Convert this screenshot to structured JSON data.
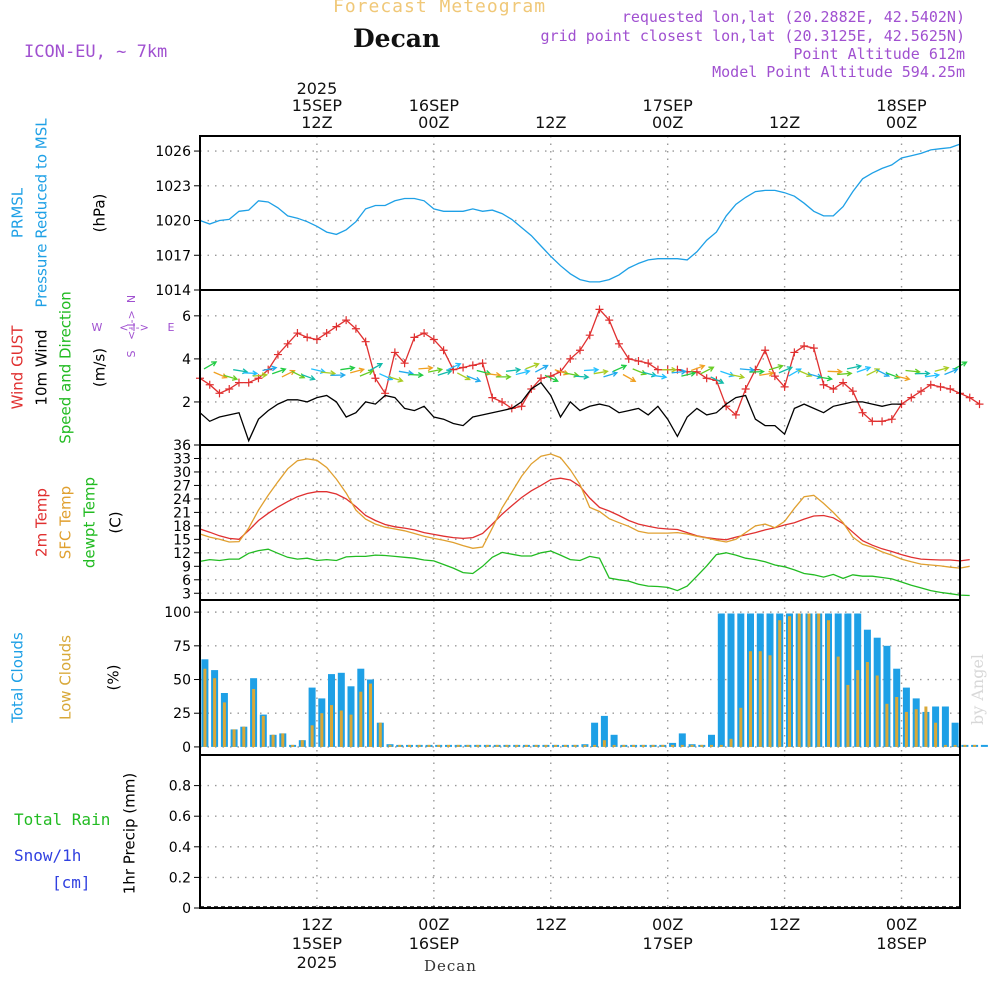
{
  "header": {
    "subtitle": "Forecast Meteogram",
    "title": "Decan",
    "model": "ICON-EU, ~ 7km",
    "requested": "requested lon,lat (20.2882E, 42.5402N)",
    "gridpoint": "grid point closest lon,lat (20.3125E, 42.5625N)",
    "point_alt": "Point Altitude 612m",
    "model_alt": "Model Point Altitude 594.25m",
    "bottom_label": "Decan",
    "credit": "by Angel",
    "colors": {
      "subtitle": "#f0c878",
      "purple": "#a050d0",
      "credit": "#d8d8d8"
    }
  },
  "chart_data": {
    "type": "meteogram",
    "time_axis": {
      "start": "2025-09-15 00Z",
      "step_hours": 1,
      "hours": 78,
      "top_labels": [
        {
          "h": 12,
          "lines": [
            "2025",
            "15SEP",
            "12Z"
          ]
        },
        {
          "h": 24,
          "lines": [
            "16SEP",
            "00Z"
          ]
        },
        {
          "h": 36,
          "lines": [
            "12Z"
          ]
        },
        {
          "h": 48,
          "lines": [
            "17SEP",
            "00Z"
          ]
        },
        {
          "h": 60,
          "lines": [
            "12Z"
          ]
        },
        {
          "h": 72,
          "lines": [
            "18SEP",
            "00Z"
          ]
        }
      ],
      "bottom_labels": [
        {
          "h": 12,
          "lines": [
            "12Z",
            "15SEP",
            "2025"
          ]
        },
        {
          "h": 24,
          "lines": [
            "00Z",
            "16SEP"
          ]
        },
        {
          "h": 36,
          "lines": [
            "12Z"
          ]
        },
        {
          "h": 48,
          "lines": [
            "00Z",
            "17SEP"
          ]
        },
        {
          "h": 60,
          "lines": [
            "12Z"
          ]
        },
        {
          "h": 72,
          "lines": [
            "00Z",
            "18SEP"
          ]
        }
      ]
    },
    "panels": [
      {
        "id": "pressure",
        "ylabel_lines": [
          {
            "text": "PRMSL",
            "color": "#1ea0e6"
          },
          {
            "text": "Pressure Reduced to MSL",
            "color": "#1ea0e6"
          }
        ],
        "unit": "(hPa)",
        "ylim": [
          1014,
          1027.3
        ],
        "yticks": [
          1014,
          1017,
          1020,
          1023,
          1026
        ],
        "series": [
          {
            "name": "PRMSL",
            "color": "#1ea0e6",
            "type": "line",
            "values": [
              1020,
              1019.7,
              1020,
              1020.1,
              1020.8,
              1020.9,
              1021.7,
              1021.6,
              1021.1,
              1020.4,
              1020.2,
              1019.9,
              1019.5,
              1019,
              1018.8,
              1019.2,
              1019.9,
              1021,
              1021.3,
              1021.3,
              1021.7,
              1021.9,
              1021.9,
              1021.7,
              1021,
              1020.8,
              1020.8,
              1020.8,
              1021,
              1020.8,
              1020.9,
              1020.6,
              1020.1,
              1019.4,
              1018.7,
              1017.8,
              1016.9,
              1016.1,
              1015.4,
              1014.9,
              1014.7,
              1014.7,
              1014.9,
              1015.3,
              1015.9,
              1016.3,
              1016.6,
              1016.7,
              1016.7,
              1016.7,
              1016.6,
              1017.3,
              1018.3,
              1019,
              1020.4,
              1021.4,
              1022,
              1022.5,
              1022.6,
              1022.6,
              1022.4,
              1022.1,
              1021.5,
              1020.8,
              1020.4,
              1020.4,
              1021.2,
              1022.5,
              1023.6,
              1024.1,
              1024.5,
              1024.8,
              1025.4,
              1025.6,
              1025.8,
              1026.1,
              1026.2,
              1026.3,
              1026.6
            ]
          }
        ]
      },
      {
        "id": "wind",
        "ylabel_lines": [
          {
            "text": "Wind GUST",
            "color": "#e03030"
          },
          {
            "text": "10m Wind",
            "color": "#000000"
          },
          {
            "text": "Speed and Direction",
            "color": "#22bb22"
          }
        ],
        "unit": "(m/s)",
        "compass": {
          "w": "W",
          "e": "E",
          "n": "N",
          "s": "S",
          "arrow": "<-I->",
          "color": "#a050d0"
        },
        "ylim": [
          0,
          7.2
        ],
        "yticks": [
          2,
          4,
          6
        ],
        "series": [
          {
            "name": "Wind GUST",
            "color": "#e03030",
            "type": "line",
            "marker": "+",
            "values": [
              3.1,
              2.8,
              2.4,
              2.6,
              2.9,
              2.9,
              3.1,
              3.5,
              4.2,
              4.7,
              5.2,
              5.0,
              4.9,
              5.2,
              5.5,
              5.8,
              5.4,
              4.8,
              3.1,
              2.4,
              4.3,
              3.8,
              5.0,
              5.2,
              4.9,
              4.4,
              3.5,
              3.6,
              3.7,
              3.8,
              2.2,
              2.0,
              1.7,
              1.8,
              2.6,
              3.1,
              3.2,
              3.4,
              4.0,
              4.4,
              5.1,
              6.3,
              5.8,
              4.7,
              4.0,
              3.9,
              3.8,
              3.5,
              3.5,
              3.5,
              3.4,
              3.4,
              3.1,
              3.0,
              1.8,
              1.4,
              2.6,
              3.5,
              4.4,
              3.2,
              2.7,
              4.3,
              4.6,
              4.5,
              2.8,
              2.6,
              2.9,
              2.5,
              1.5,
              1.1,
              1.1,
              1.2,
              1.9,
              2.2,
              2.5,
              2.8,
              2.7,
              2.6,
              2.4,
              2.2,
              1.9
            ]
          },
          {
            "name": "10m Wind",
            "color": "#000000",
            "type": "line",
            "values": [
              1.5,
              1.1,
              1.3,
              1.4,
              1.5,
              0.2,
              1.2,
              1.6,
              1.9,
              2.1,
              2.1,
              2.0,
              2.2,
              2.3,
              2.0,
              1.3,
              1.5,
              2.0,
              1.9,
              2.3,
              2.2,
              1.7,
              1.6,
              1.8,
              1.3,
              1.2,
              1.0,
              0.9,
              1.3,
              1.4,
              1.5,
              1.6,
              1.7,
              2.0,
              2.6,
              2.9,
              2.3,
              1.3,
              2.0,
              1.6,
              1.8,
              1.9,
              1.8,
              1.5,
              1.6,
              1.7,
              1.4,
              1.8,
              1.2,
              0.4,
              1.3,
              1.7,
              1.4,
              1.5,
              1.9,
              2.2,
              2.3,
              1.2,
              0.9,
              0.9,
              0.5,
              1.7,
              1.9,
              1.7,
              1.5,
              1.8,
              1.9,
              2.0,
              2.0,
              1.9,
              1.8,
              1.9,
              1.9
            ]
          }
        ],
        "arrows_note": "wind direction barbs, mostly westerly, colored by speed (rainbow)"
      },
      {
        "id": "temperature",
        "ylabel_lines": [
          {
            "text": "2m Temp",
            "color": "#e03030"
          },
          {
            "text": "SFC Temp",
            "color": "#e0a030"
          },
          {
            "text": "dewpt Temp",
            "color": "#22bb22"
          }
        ],
        "unit": "(C)",
        "ylim": [
          1.5,
          36
        ],
        "yticks": [
          3,
          6,
          9,
          12,
          15,
          18,
          21,
          24,
          27,
          30,
          33,
          36
        ],
        "series": [
          {
            "name": "2m Temp",
            "color": "#e03030",
            "type": "line",
            "values": [
              17.3,
              16.6,
              15.8,
              15.2,
              15.0,
              17.0,
              19.2,
              20.8,
              22.2,
              23.4,
              24.5,
              25.2,
              25.6,
              25.6,
              25.1,
              24.0,
              22.3,
              20.3,
              19.2,
              18.3,
              17.8,
              17.5,
              17.1,
              16.5,
              16.1,
              15.7,
              15.4,
              15.2,
              15.4,
              16.3,
              18.4,
              20.6,
              22.5,
              24.3,
              25.8,
              27.0,
              28.3,
              28.6,
              28.2,
              26.8,
              24.2,
              22.1,
              21.3,
              20.3,
              19.2,
              18.4,
              17.9,
              17.5,
              17.3,
              17.2,
              16.5,
              15.8,
              15.4,
              15.1,
              14.9,
              15.5,
              16.0,
              16.5,
              17.1,
              17.6,
              18.2,
              18.7,
              19.5,
              20.2,
              20.3,
              19.8,
              18.5,
              16.6,
              14.7,
              13.7,
              12.9,
              12.3,
              11.6,
              11.0,
              10.6,
              10.5,
              10.4,
              10.4,
              10.2,
              10.5
            ]
          },
          {
            "name": "SFC Temp",
            "color": "#e0a030",
            "type": "line",
            "values": [
              16.2,
              15.5,
              15.0,
              14.4,
              14.5,
              17.5,
              21.5,
              24.8,
              27.8,
              30.7,
              32.5,
              32.9,
              32.6,
              31.0,
              28.4,
              25.3,
              21.5,
              19.5,
              18.4,
              17.7,
              17.3,
              16.9,
              16.3,
              15.7,
              15.2,
              14.8,
              14.3,
              13.6,
              13.0,
              13.3,
              17.5,
              22.0,
              25.5,
              29.0,
              31.8,
              33.5,
              34.0,
              33.2,
              30.5,
              27.2,
              22.1,
              21.2,
              19.6,
              18.7,
              17.9,
              16.8,
              16.4,
              16.4,
              16.4,
              16.5,
              16.2,
              15.7,
              15.3,
              14.8,
              14.4,
              15.0,
              16.5,
              18.0,
              18.4,
              17.6,
              19.0,
              21.9,
              24.5,
              24.8,
              23.0,
              21.0,
              18.7,
              15.5,
              13.9,
              13.2,
              12.2,
              11.5,
              10.6,
              10.0,
              9.5,
              9.3,
              9.1,
              8.8,
              8.6,
              9.0
            ]
          },
          {
            "name": "dewpt Temp",
            "color": "#22bb22",
            "type": "line",
            "values": [
              10.1,
              10.5,
              10.3,
              10.6,
              10.6,
              11.9,
              12.5,
              12.8,
              11.9,
              11.0,
              10.6,
              10.8,
              10.3,
              10.5,
              10.3,
              11.1,
              11.2,
              11.2,
              11.5,
              11.4,
              11.2,
              11.0,
              10.8,
              10.4,
              10.2,
              9.4,
              8.6,
              7.6,
              7.4,
              9.0,
              11.0,
              12.1,
              11.7,
              11.3,
              11.3,
              12.0,
              12.4,
              11.5,
              10.5,
              10.3,
              11.2,
              10.8,
              6.4,
              6.0,
              5.7,
              5.0,
              4.6,
              4.5,
              4.3,
              3.6,
              4.6,
              6.8,
              9.1,
              11.6,
              12.0,
              11.5,
              10.8,
              10.5,
              10.0,
              9.3,
              8.9,
              8.2,
              7.4,
              7.1,
              6.6,
              7.2,
              6.3,
              7.1,
              6.8,
              6.8,
              6.5,
              6.2,
              5.5,
              4.8,
              4.2,
              3.6,
              3.2,
              2.9,
              2.6,
              2.5
            ]
          }
        ]
      },
      {
        "id": "clouds",
        "ylabel_lines": [
          {
            "text": "Total Clouds",
            "color": "#1ea0e6"
          },
          {
            "text": "Low Clouds",
            "color": "#d8a838"
          }
        ],
        "unit": "(%)",
        "ylim": [
          -6,
          109
        ],
        "yticks": [
          0,
          25,
          50,
          75,
          100
        ],
        "series": [
          {
            "name": "Total Clouds",
            "color": "#1ea0e6",
            "type": "bar",
            "values": [
              65,
              57,
              40,
              13,
              15,
              51,
              24,
              9,
              10,
              0,
              5,
              44,
              36,
              54,
              55,
              45,
              58,
              50,
              18,
              2,
              0,
              0,
              0,
              0,
              0,
              0,
              0,
              0,
              0,
              0,
              0,
              0,
              0,
              0,
              0,
              0,
              0,
              0,
              0,
              2,
              18,
              23,
              9,
              0,
              0,
              0,
              0,
              0,
              3,
              10,
              2,
              1,
              9,
              99,
              99,
              99,
              99,
              99,
              99,
              99,
              99,
              99,
              99,
              99,
              99,
              99,
              99,
              99,
              87,
              81,
              75,
              58,
              44,
              36,
              26,
              30,
              30,
              18,
              0,
              0,
              0
            ]
          },
          {
            "name": "Low Clouds",
            "color": "#d8a838",
            "type": "bar",
            "values": [
              58,
              51,
              33,
              13,
              15,
              43,
              23,
              9,
              10,
              0,
              5,
              16,
              25,
              31,
              27,
              24,
              41,
              47,
              18,
              1,
              0,
              0,
              0,
              0,
              0,
              0,
              0,
              0,
              0,
              0,
              0,
              0,
              0,
              0,
              0,
              0,
              0,
              0,
              0,
              0,
              0,
              5,
              0,
              0,
              0,
              0,
              0,
              0,
              0,
              0,
              0,
              0,
              0,
              0,
              6,
              29,
              71,
              71,
              68,
              94,
              97,
              99,
              99,
              99,
              94,
              67,
              46,
              57,
              63,
              53,
              32,
              37,
              26,
              28,
              30,
              18,
              0,
              0,
              0,
              0
            ]
          }
        ]
      },
      {
        "id": "precip",
        "ylabel_lines": [
          {
            "text": "Total  Rain",
            "color": "#22bb22"
          },
          {
            "text": "Snow/1h",
            "color": "#3040e0"
          },
          {
            "text": "[cm]",
            "color": "#3040e0"
          }
        ],
        "unit": "1hr Precip (mm)",
        "ylim": [
          0,
          1
        ],
        "yticks": [
          0,
          0.2,
          0.4,
          0.6,
          0.8
        ],
        "series": [
          {
            "name": "Total Rain",
            "color": "#22bb22",
            "type": "bar",
            "values": []
          }
        ]
      }
    ]
  }
}
